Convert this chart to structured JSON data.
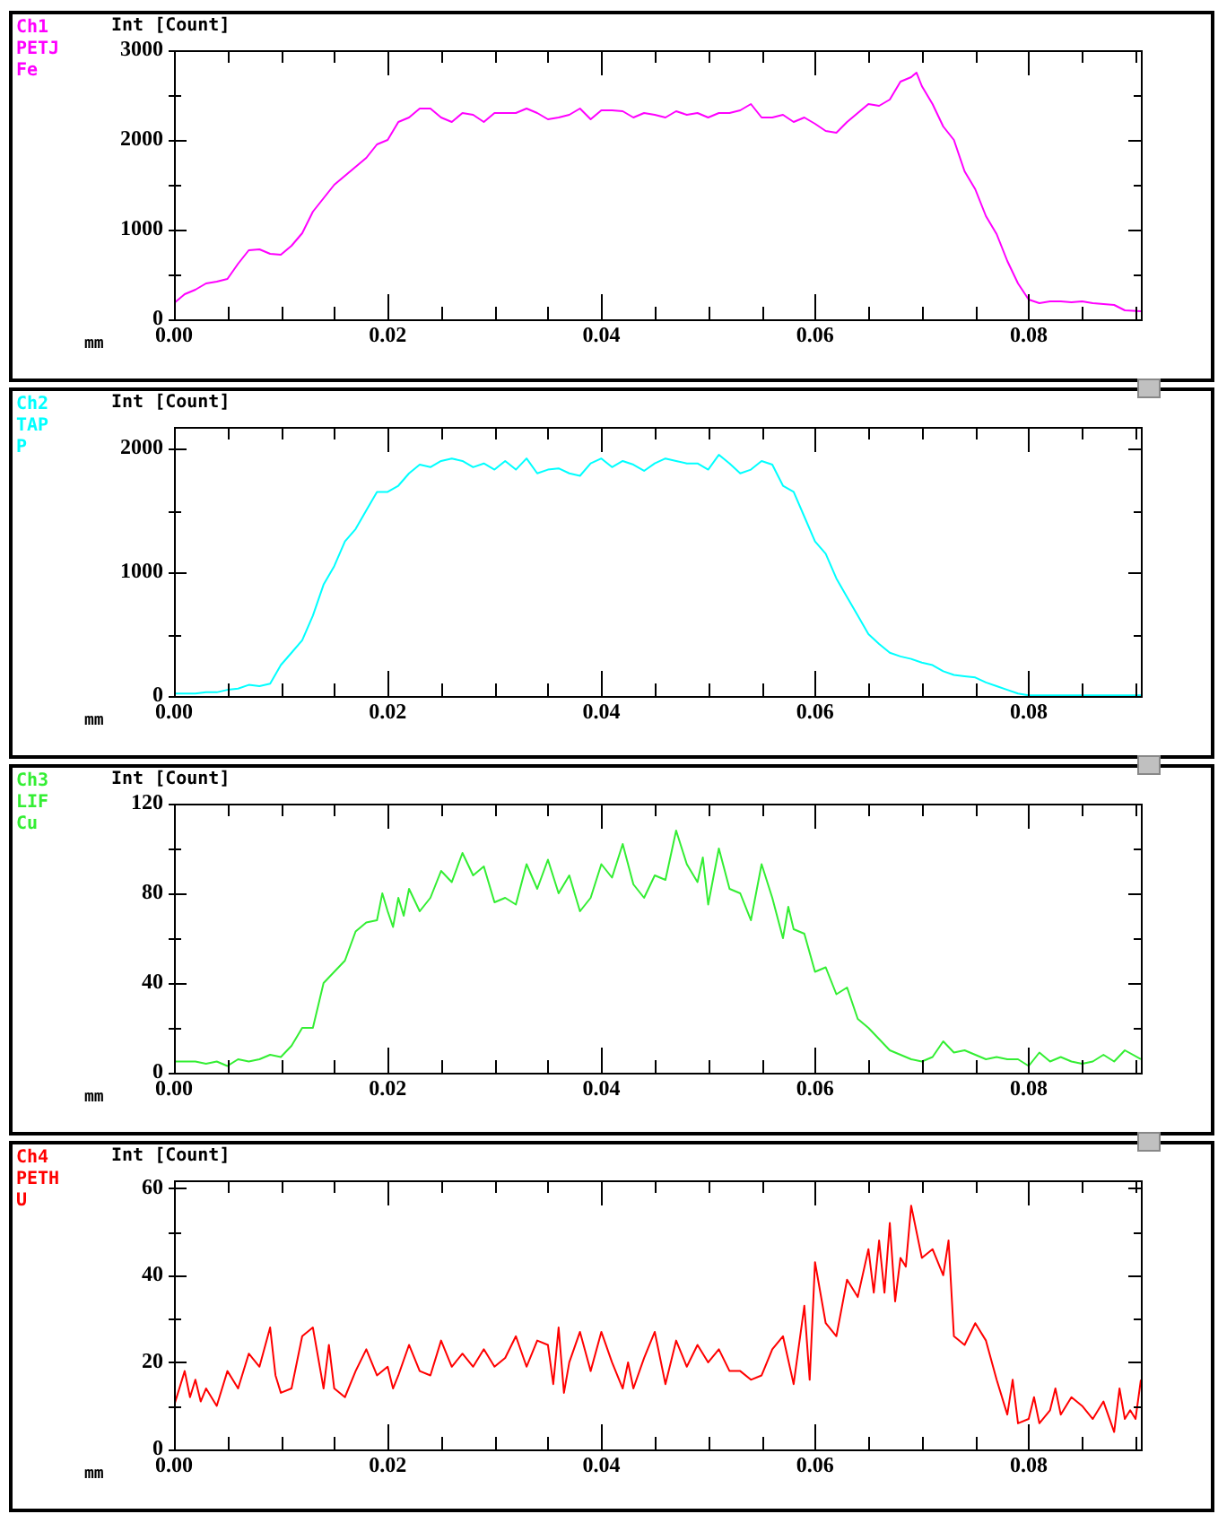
{
  "chart_data": [
    {
      "type": "line",
      "xlabel": "mm",
      "ylabel": "Int [Count]",
      "annotations": [
        "Ch1",
        "PETJ",
        "Fe"
      ],
      "x": [
        0,
        0.001,
        0.002,
        0.003,
        0.004,
        0.005,
        0.006,
        0.007,
        0.008,
        0.009,
        0.01,
        0.011,
        0.012,
        0.013,
        0.014,
        0.015,
        0.016,
        0.017,
        0.018,
        0.019,
        0.02,
        0.021,
        0.022,
        0.023,
        0.024,
        0.025,
        0.026,
        0.027,
        0.028,
        0.029,
        0.03,
        0.031,
        0.032,
        0.033,
        0.034,
        0.035,
        0.036,
        0.037,
        0.038,
        0.039,
        0.04,
        0.041,
        0.042,
        0.043,
        0.044,
        0.045,
        0.046,
        0.047,
        0.048,
        0.049,
        0.05,
        0.051,
        0.052,
        0.053,
        0.054,
        0.055,
        0.056,
        0.057,
        0.058,
        0.059,
        0.06,
        0.061,
        0.062,
        0.063,
        0.064,
        0.065,
        0.066,
        0.067,
        0.068,
        0.069,
        0.0695,
        0.07,
        0.071,
        0.072,
        0.073,
        0.074,
        0.075,
        0.076,
        0.077,
        0.078,
        0.079,
        0.08,
        0.081,
        0.082,
        0.083,
        0.084,
        0.085,
        0.086,
        0.087,
        0.088,
        0.089,
        0.0905
      ],
      "series": [
        {
          "color": "#ff00ff",
          "values": [
            180,
            280,
            330,
            400,
            420,
            450,
            620,
            770,
            780,
            730,
            720,
            820,
            960,
            1200,
            1350,
            1500,
            1600,
            1700,
            1800,
            1950,
            2000,
            2200,
            2250,
            2350,
            2350,
            2250,
            2200,
            2300,
            2280,
            2200,
            2300,
            2300,
            2300,
            2350,
            2300,
            2230,
            2250,
            2280,
            2350,
            2230,
            2330,
            2330,
            2320,
            2250,
            2300,
            2280,
            2250,
            2320,
            2280,
            2300,
            2250,
            2300,
            2300,
            2330,
            2400,
            2250,
            2250,
            2280,
            2200,
            2250,
            2180,
            2100,
            2080,
            2200,
            2300,
            2400,
            2380,
            2450,
            2650,
            2700,
            2750,
            2600,
            2400,
            2150,
            2000,
            1650,
            1450,
            1150,
            950,
            650,
            400,
            220,
            180,
            200,
            200,
            190,
            200,
            180,
            170,
            160,
            100,
            90
          ]
        }
      ],
      "xlim": [
        0,
        0.0905
      ],
      "ylim": [
        0,
        3000
      ],
      "xticks": [
        {
          "value": 0,
          "label": "0.00"
        },
        {
          "value": 0.005,
          "label": null
        },
        {
          "value": 0.01,
          "label": null
        },
        {
          "value": 0.015,
          "label": null
        },
        {
          "value": 0.02,
          "label": "0.02"
        },
        {
          "value": 0.025,
          "label": null
        },
        {
          "value": 0.03,
          "label": null
        },
        {
          "value": 0.035,
          "label": null
        },
        {
          "value": 0.04,
          "label": "0.04"
        },
        {
          "value": 0.045,
          "label": null
        },
        {
          "value": 0.05,
          "label": null
        },
        {
          "value": 0.055,
          "label": null
        },
        {
          "value": 0.06,
          "label": "0.06"
        },
        {
          "value": 0.065,
          "label": null
        },
        {
          "value": 0.07,
          "label": null
        },
        {
          "value": 0.075,
          "label": null
        },
        {
          "value": 0.08,
          "label": "0.08"
        },
        {
          "value": 0.085,
          "label": null
        },
        {
          "value": 0.09,
          "label": null
        }
      ],
      "yticks": [
        0,
        {
          "value": 500,
          "label": null
        },
        1000,
        {
          "value": 1500,
          "label": null
        },
        2000,
        {
          "value": 2500,
          "label": null
        },
        3000
      ]
    },
    {
      "type": "line",
      "xlabel": "mm",
      "ylabel": "Int [Count]",
      "annotations": [
        "Ch2",
        "TAP",
        "P"
      ],
      "x": [
        0,
        0.001,
        0.002,
        0.003,
        0.004,
        0.005,
        0.006,
        0.007,
        0.008,
        0.009,
        0.01,
        0.011,
        0.012,
        0.013,
        0.014,
        0.015,
        0.016,
        0.017,
        0.018,
        0.019,
        0.02,
        0.021,
        0.022,
        0.023,
        0.024,
        0.025,
        0.026,
        0.027,
        0.028,
        0.029,
        0.03,
        0.031,
        0.032,
        0.033,
        0.034,
        0.035,
        0.036,
        0.037,
        0.038,
        0.039,
        0.04,
        0.041,
        0.042,
        0.043,
        0.044,
        0.045,
        0.046,
        0.047,
        0.048,
        0.049,
        0.05,
        0.051,
        0.052,
        0.053,
        0.054,
        0.055,
        0.056,
        0.057,
        0.058,
        0.059,
        0.06,
        0.061,
        0.062,
        0.063,
        0.064,
        0.065,
        0.066,
        0.067,
        0.068,
        0.069,
        0.07,
        0.071,
        0.072,
        0.073,
        0.074,
        0.075,
        0.076,
        0.077,
        0.078,
        0.079,
        0.08,
        0.081,
        0.082,
        0.083,
        0.084,
        0.085,
        0.086,
        0.087,
        0.088,
        0.089,
        0.09,
        0.0905
      ],
      "series": [
        {
          "color": "#00ffff",
          "values": [
            20,
            20,
            20,
            30,
            30,
            50,
            60,
            90,
            80,
            100,
            250,
            350,
            450,
            650,
            900,
            1050,
            1250,
            1350,
            1500,
            1650,
            1650,
            1700,
            1800,
            1870,
            1850,
            1900,
            1920,
            1900,
            1850,
            1880,
            1830,
            1900,
            1830,
            1920,
            1800,
            1830,
            1840,
            1800,
            1780,
            1880,
            1920,
            1850,
            1900,
            1870,
            1820,
            1880,
            1920,
            1900,
            1880,
            1880,
            1830,
            1950,
            1880,
            1800,
            1830,
            1900,
            1870,
            1700,
            1650,
            1450,
            1250,
            1150,
            950,
            800,
            650,
            500,
            420,
            350,
            320,
            300,
            270,
            250,
            200,
            170,
            160,
            150,
            110,
            80,
            50,
            20,
            5,
            5,
            5,
            5,
            5,
            5,
            5,
            5,
            5,
            5,
            5,
            5
          ]
        }
      ],
      "xlim": [
        0,
        0.0905
      ],
      "ylim": [
        0,
        2175
      ],
      "xticks": [
        {
          "value": 0,
          "label": "0.00"
        },
        {
          "value": 0.005,
          "label": null
        },
        {
          "value": 0.01,
          "label": null
        },
        {
          "value": 0.015,
          "label": null
        },
        {
          "value": 0.02,
          "label": "0.02"
        },
        {
          "value": 0.025,
          "label": null
        },
        {
          "value": 0.03,
          "label": null
        },
        {
          "value": 0.035,
          "label": null
        },
        {
          "value": 0.04,
          "label": "0.04"
        },
        {
          "value": 0.045,
          "label": null
        },
        {
          "value": 0.05,
          "label": null
        },
        {
          "value": 0.055,
          "label": null
        },
        {
          "value": 0.06,
          "label": "0.06"
        },
        {
          "value": 0.065,
          "label": null
        },
        {
          "value": 0.07,
          "label": null
        },
        {
          "value": 0.075,
          "label": null
        },
        {
          "value": 0.08,
          "label": "0.08"
        },
        {
          "value": 0.085,
          "label": null
        },
        {
          "value": 0.09,
          "label": null
        }
      ],
      "yticks": [
        0,
        {
          "value": 500,
          "label": null
        },
        1000,
        {
          "value": 1500,
          "label": null
        },
        2000
      ]
    },
    {
      "type": "line",
      "xlabel": "mm",
      "ylabel": "Int [Count]",
      "annotations": [
        "Ch3",
        "LIF",
        "Cu"
      ],
      "x": [
        0,
        0.001,
        0.002,
        0.003,
        0.004,
        0.005,
        0.006,
        0.007,
        0.008,
        0.009,
        0.01,
        0.011,
        0.012,
        0.013,
        0.014,
        0.015,
        0.016,
        0.017,
        0.018,
        0.019,
        0.0195,
        0.02,
        0.0205,
        0.021,
        0.0215,
        0.022,
        0.023,
        0.024,
        0.025,
        0.026,
        0.027,
        0.028,
        0.029,
        0.03,
        0.031,
        0.032,
        0.033,
        0.034,
        0.035,
        0.036,
        0.037,
        0.038,
        0.039,
        0.04,
        0.041,
        0.042,
        0.043,
        0.044,
        0.045,
        0.046,
        0.047,
        0.048,
        0.049,
        0.0495,
        0.05,
        0.051,
        0.052,
        0.053,
        0.054,
        0.055,
        0.056,
        0.057,
        0.0575,
        0.058,
        0.059,
        0.06,
        0.061,
        0.062,
        0.063,
        0.064,
        0.065,
        0.066,
        0.067,
        0.068,
        0.069,
        0.07,
        0.071,
        0.072,
        0.073,
        0.074,
        0.075,
        0.076,
        0.077,
        0.078,
        0.079,
        0.08,
        0.081,
        0.082,
        0.083,
        0.084,
        0.085,
        0.086,
        0.087,
        0.088,
        0.089,
        0.0905
      ],
      "series": [
        {
          "color": "#33ee33",
          "values": [
            5,
            5,
            5,
            4,
            5,
            3,
            6,
            5,
            6,
            8,
            7,
            12,
            20,
            20,
            40,
            45,
            50,
            63,
            67,
            68,
            80,
            72,
            65,
            78,
            70,
            82,
            72,
            78,
            90,
            85,
            98,
            88,
            92,
            76,
            78,
            75,
            93,
            82,
            95,
            80,
            88,
            72,
            78,
            93,
            87,
            102,
            84,
            78,
            88,
            86,
            108,
            93,
            85,
            96,
            75,
            100,
            82,
            80,
            68,
            93,
            78,
            60,
            74,
            64,
            62,
            45,
            47,
            35,
            38,
            24,
            20,
            15,
            10,
            8,
            6,
            5,
            7,
            14,
            9,
            10,
            8,
            6,
            7,
            6,
            6,
            3,
            9,
            5,
            7,
            5,
            4,
            5,
            8,
            5,
            10,
            6
          ]
        }
      ],
      "xlim": [
        0,
        0.0905
      ],
      "ylim": [
        0,
        120
      ],
      "xticks": [
        {
          "value": 0,
          "label": "0.00"
        },
        {
          "value": 0.005,
          "label": null
        },
        {
          "value": 0.01,
          "label": null
        },
        {
          "value": 0.015,
          "label": null
        },
        {
          "value": 0.02,
          "label": "0.02"
        },
        {
          "value": 0.025,
          "label": null
        },
        {
          "value": 0.03,
          "label": null
        },
        {
          "value": 0.035,
          "label": null
        },
        {
          "value": 0.04,
          "label": "0.04"
        },
        {
          "value": 0.045,
          "label": null
        },
        {
          "value": 0.05,
          "label": null
        },
        {
          "value": 0.055,
          "label": null
        },
        {
          "value": 0.06,
          "label": "0.06"
        },
        {
          "value": 0.065,
          "label": null
        },
        {
          "value": 0.07,
          "label": null
        },
        {
          "value": 0.075,
          "label": null
        },
        {
          "value": 0.08,
          "label": "0.08"
        },
        {
          "value": 0.085,
          "label": null
        },
        {
          "value": 0.09,
          "label": null
        }
      ],
      "yticks": [
        0,
        {
          "value": 20,
          "label": null
        },
        40,
        {
          "value": 60,
          "label": null
        },
        80,
        {
          "value": 100,
          "label": null
        },
        120
      ]
    },
    {
      "type": "line",
      "xlabel": "mm",
      "ylabel": "Int [Count]",
      "annotations": [
        "Ch4",
        "PETH",
        "U"
      ],
      "x": [
        0,
        0.001,
        0.0015,
        0.002,
        0.0025,
        0.003,
        0.004,
        0.005,
        0.006,
        0.007,
        0.008,
        0.009,
        0.0095,
        0.01,
        0.011,
        0.012,
        0.013,
        0.014,
        0.0145,
        0.015,
        0.016,
        0.017,
        0.018,
        0.019,
        0.02,
        0.0205,
        0.021,
        0.022,
        0.023,
        0.024,
        0.025,
        0.026,
        0.027,
        0.028,
        0.029,
        0.03,
        0.031,
        0.032,
        0.033,
        0.034,
        0.035,
        0.0355,
        0.036,
        0.0365,
        0.037,
        0.038,
        0.039,
        0.04,
        0.041,
        0.042,
        0.0425,
        0.043,
        0.044,
        0.045,
        0.046,
        0.047,
        0.048,
        0.049,
        0.05,
        0.051,
        0.052,
        0.053,
        0.054,
        0.055,
        0.056,
        0.057,
        0.058,
        0.059,
        0.0595,
        0.06,
        0.061,
        0.062,
        0.063,
        0.064,
        0.065,
        0.0655,
        0.066,
        0.0665,
        0.067,
        0.0675,
        0.068,
        0.0685,
        0.069,
        0.07,
        0.071,
        0.072,
        0.0725,
        0.073,
        0.074,
        0.075,
        0.076,
        0.077,
        0.078,
        0.0785,
        0.079,
        0.08,
        0.0805,
        0.081,
        0.082,
        0.0825,
        0.083,
        0.084,
        0.085,
        0.086,
        0.087,
        0.088,
        0.0885,
        0.089,
        0.0895,
        0.09,
        0.0905
      ],
      "series": [
        {
          "color": "#ff0000",
          "values": [
            10,
            18,
            12,
            16,
            11,
            14,
            10,
            18,
            14,
            22,
            19,
            28,
            17,
            13,
            14,
            26,
            28,
            14,
            24,
            14,
            12,
            18,
            23,
            17,
            19,
            14,
            17,
            24,
            18,
            17,
            25,
            19,
            22,
            19,
            23,
            19,
            21,
            26,
            19,
            25,
            24,
            15,
            28,
            13,
            20,
            27,
            18,
            27,
            20,
            14,
            20,
            14,
            21,
            27,
            15,
            25,
            19,
            24,
            20,
            23,
            18,
            18,
            16,
            17,
            23,
            26,
            15,
            33,
            16,
            43,
            29,
            26,
            39,
            35,
            46,
            36,
            48,
            36,
            52,
            34,
            44,
            42,
            56,
            44,
            46,
            40,
            48,
            26,
            24,
            29,
            25,
            16,
            8,
            16,
            6,
            7,
            12,
            6,
            9,
            14,
            8,
            12,
            10,
            7,
            11,
            4,
            14,
            7,
            9,
            7,
            16
          ]
        }
      ],
      "xlim": [
        0,
        0.0905
      ],
      "ylim": [
        0,
        61.8
      ],
      "xticks": [
        {
          "value": 0,
          "label": "0.00"
        },
        {
          "value": 0.005,
          "label": null
        },
        {
          "value": 0.01,
          "label": null
        },
        {
          "value": 0.015,
          "label": null
        },
        {
          "value": 0.02,
          "label": "0.02"
        },
        {
          "value": 0.025,
          "label": null
        },
        {
          "value": 0.03,
          "label": null
        },
        {
          "value": 0.035,
          "label": null
        },
        {
          "value": 0.04,
          "label": "0.04"
        },
        {
          "value": 0.045,
          "label": null
        },
        {
          "value": 0.05,
          "label": null
        },
        {
          "value": 0.055,
          "label": null
        },
        {
          "value": 0.06,
          "label": "0.06"
        },
        {
          "value": 0.065,
          "label": null
        },
        {
          "value": 0.07,
          "label": null
        },
        {
          "value": 0.075,
          "label": null
        },
        {
          "value": 0.08,
          "label": "0.08"
        },
        {
          "value": 0.085,
          "label": null
        },
        {
          "value": 0.09,
          "label": null
        }
      ],
      "yticks": [
        0,
        {
          "value": 10,
          "label": null
        },
        20,
        {
          "value": 30,
          "label": null
        },
        40,
        {
          "value": 50,
          "label": null
        },
        60
      ]
    }
  ]
}
